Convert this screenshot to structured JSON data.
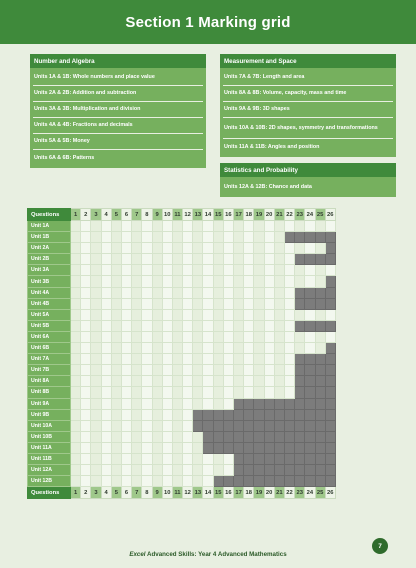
{
  "title": "Section 1 Marking grid",
  "number_algebra": {
    "heading": "Number and Algebra",
    "items": [
      "Units 1A & 1B: Whole numbers and place value",
      "Units 2A & 2B: Addition and subtraction",
      "Units 3A & 3B: Multiplication and division",
      "Units 4A & 4B: Fractions and decimals",
      "Units 5A & 5B: Money",
      "Units 6A & 6B: Patterns"
    ]
  },
  "measurement_space": {
    "heading": "Measurement and Space",
    "items": [
      "Units 7A & 7B: Length and area",
      "Units 8A & 8B: Volume, capacity, mass and time",
      "Units 9A & 9B: 3D shapes",
      "Units 10A & 10B: 2D shapes, symmetry and transformations",
      "Units 11A & 11B: Angles and position"
    ]
  },
  "statistics_probability": {
    "heading": "Statistics and Probability",
    "items": [
      "Units 12A & 12B: Chance and data"
    ]
  },
  "grid": {
    "header_label": "Questions",
    "questions": [
      "1",
      "2",
      "3",
      "4",
      "5",
      "6",
      "7",
      "8",
      "9",
      "10",
      "11",
      "12",
      "13",
      "14",
      "15",
      "16",
      "17",
      "18",
      "19",
      "20",
      "21",
      "22",
      "23",
      "24",
      "25",
      "26"
    ],
    "rows": [
      {
        "label": "Unit 1A",
        "questions": 26
      },
      {
        "label": "Unit 1B",
        "questions": 21
      },
      {
        "label": "Unit 2A",
        "questions": 25
      },
      {
        "label": "Unit 2B",
        "questions": 22
      },
      {
        "label": "Unit 3A",
        "questions": 26
      },
      {
        "label": "Unit 3B",
        "questions": 25
      },
      {
        "label": "Unit 4A",
        "questions": 22
      },
      {
        "label": "Unit 4B",
        "questions": 22
      },
      {
        "label": "Unit 5A",
        "questions": 26
      },
      {
        "label": "Unit 5B",
        "questions": 22
      },
      {
        "label": "Unit 6A",
        "questions": 26
      },
      {
        "label": "Unit 6B",
        "questions": 25
      },
      {
        "label": "Unit 7A",
        "questions": 22
      },
      {
        "label": "Unit 7B",
        "questions": 22
      },
      {
        "label": "Unit 8A",
        "questions": 22
      },
      {
        "label": "Unit 8B",
        "questions": 22
      },
      {
        "label": "Unit 9A",
        "questions": 16
      },
      {
        "label": "Unit 9B",
        "questions": 12
      },
      {
        "label": "Unit 10A",
        "questions": 12
      },
      {
        "label": "Unit 10B",
        "questions": 13
      },
      {
        "label": "Unit 11A",
        "questions": 13
      },
      {
        "label": "Unit 11B",
        "questions": 16
      },
      {
        "label": "Unit 12A",
        "questions": 16
      },
      {
        "label": "Unit 12B",
        "questions": 14
      }
    ]
  },
  "footer": {
    "brand": "Excel",
    "text": "Advanced Skills: Year 4 Advanced Mathematics",
    "page": "7"
  }
}
